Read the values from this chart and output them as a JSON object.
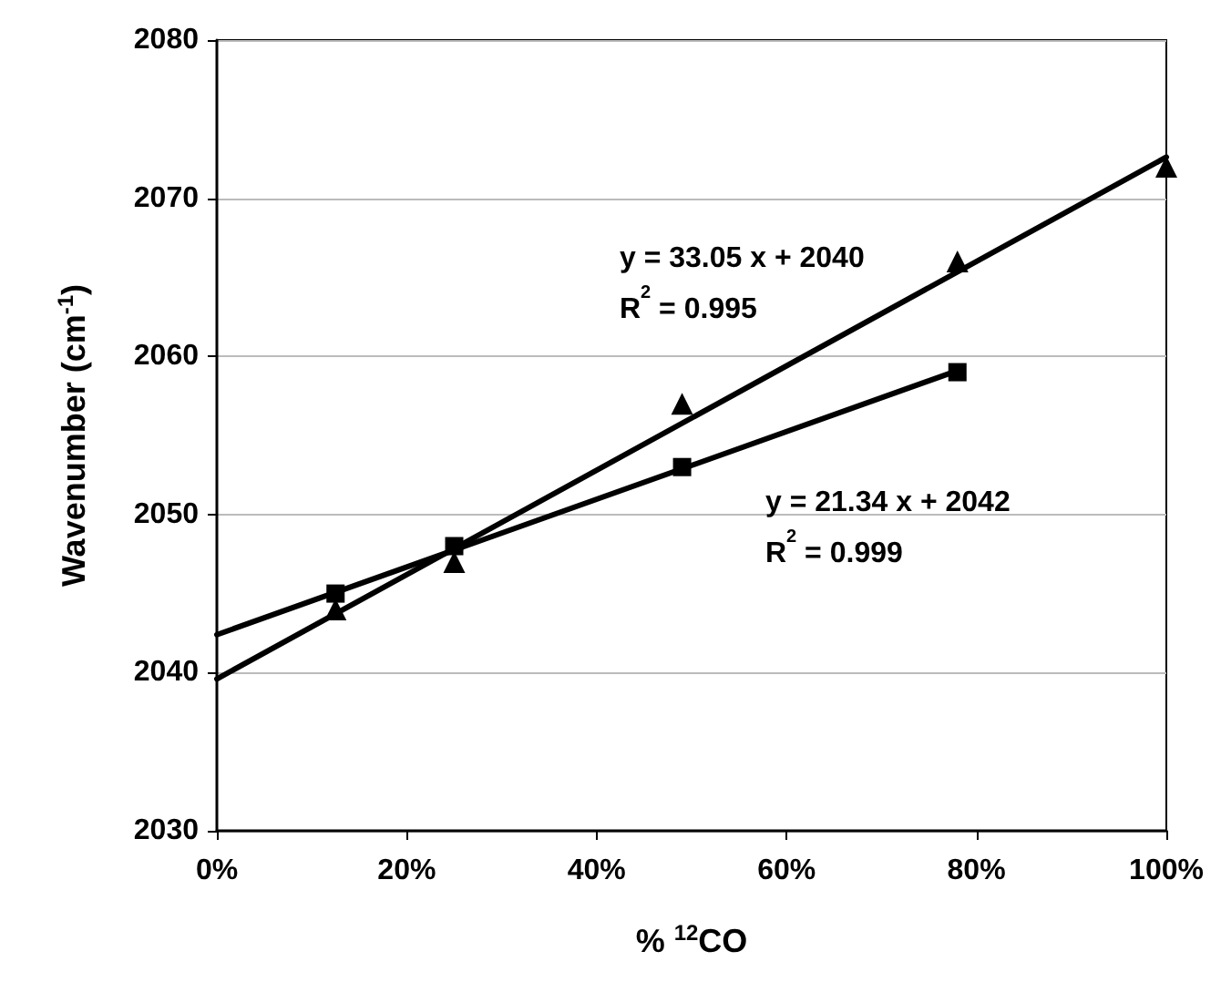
{
  "chart_data": {
    "type": "scatter",
    "xlabel": "% $^{12}$CO",
    "ylabel": "Wavenumber (cm$^{-1}$)",
    "annotations": [
      "y = 33.05 x + 2040\nR$^{2}$ = 0.995",
      "y = 21.34 x + 2042\nR$^{2}$ = 0.999"
    ],
    "series": [
      {
        "marker": "triangle",
        "color": "#000000",
        "x": [
          0.125,
          0.25,
          0.49,
          0.78,
          1.0
        ],
        "values": [
          2044,
          2047,
          2057,
          2066,
          2072
        ]
      },
      {
        "marker": "square",
        "color": "#000000",
        "x": [
          0.125,
          0.25,
          0.49,
          0.78
        ],
        "values": [
          2045,
          2048,
          2053,
          2059
        ]
      },
      {
        "type": "line",
        "marker": "none",
        "line_style": "solid",
        "color": "#000000",
        "x": [
          0,
          1
        ],
        "values": [
          2039.6,
          2072.6
        ]
      },
      {
        "type": "line",
        "marker": "none",
        "line_style": "solid",
        "color": "#000000",
        "x": [
          0,
          0.78
        ],
        "values": [
          2042.4,
          2059.1
        ]
      }
    ],
    "xlim": [
      0,
      1
    ],
    "xticks": [
      {
        "value": 0,
        "label": "0%"
      },
      {
        "value": 0.2,
        "label": "20%"
      },
      {
        "value": 0.4,
        "label": "40%"
      },
      {
        "value": 0.6,
        "label": "60%"
      },
      {
        "value": 0.8,
        "label": "80%"
      },
      {
        "value": 1,
        "label": "100%"
      }
    ],
    "ylim": [
      2030,
      2080
    ],
    "yticks": [
      2030,
      2040,
      2050,
      2060,
      2070,
      2080
    ],
    "grid": "y"
  }
}
